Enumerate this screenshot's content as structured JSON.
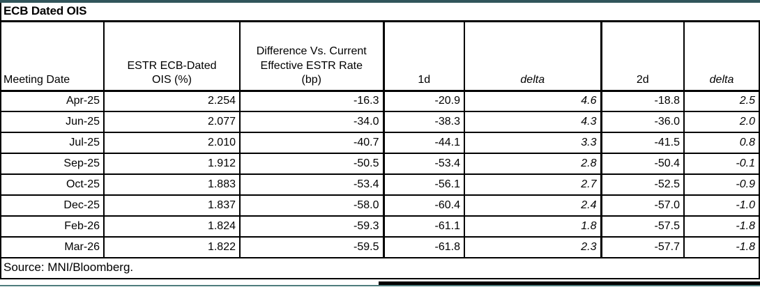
{
  "chart_data": {
    "type": "table",
    "title": "ECB Dated OIS",
    "columns": [
      "Meeting Date",
      "ESTR ECB-Dated\nOIS (%)",
      "Difference Vs. Current\nEffective ESTR Rate\n(bp)",
      "1d",
      "delta",
      "2d",
      "delta"
    ],
    "rows": [
      [
        "Apr-25",
        "2.254",
        "-16.3",
        "-20.9",
        "4.6",
        "-18.8",
        "2.5"
      ],
      [
        "Jun-25",
        "2.077",
        "-34.0",
        "-38.3",
        "4.3",
        "-36.0",
        "2.0"
      ],
      [
        "Jul-25",
        "2.010",
        "-40.7",
        "-44.1",
        "3.3",
        "-41.5",
        "0.8"
      ],
      [
        "Sep-25",
        "1.912",
        "-50.5",
        "-53.4",
        "2.8",
        "-50.4",
        "-0.1"
      ],
      [
        "Oct-25",
        "1.883",
        "-53.4",
        "-56.1",
        "2.7",
        "-52.5",
        "-0.9"
      ],
      [
        "Dec-25",
        "1.837",
        "-58.0",
        "-60.4",
        "2.4",
        "-57.0",
        "-1.0"
      ],
      [
        "Feb-26",
        "1.824",
        "-59.3",
        "-61.1",
        "1.8",
        "-57.5",
        "-1.8"
      ],
      [
        "Mar-26",
        "1.822",
        "-59.5",
        "-61.8",
        "2.3",
        "-57.7",
        "-1.8"
      ]
    ],
    "italic_columns": [
      4,
      6
    ],
    "source": "Source: MNI/Bloomberg."
  },
  "colors": {
    "accent_top_bar": "#31555b",
    "accent_bottom_line": "#4e7d7d",
    "table_border": "#000000",
    "background": "#ffffff"
  }
}
